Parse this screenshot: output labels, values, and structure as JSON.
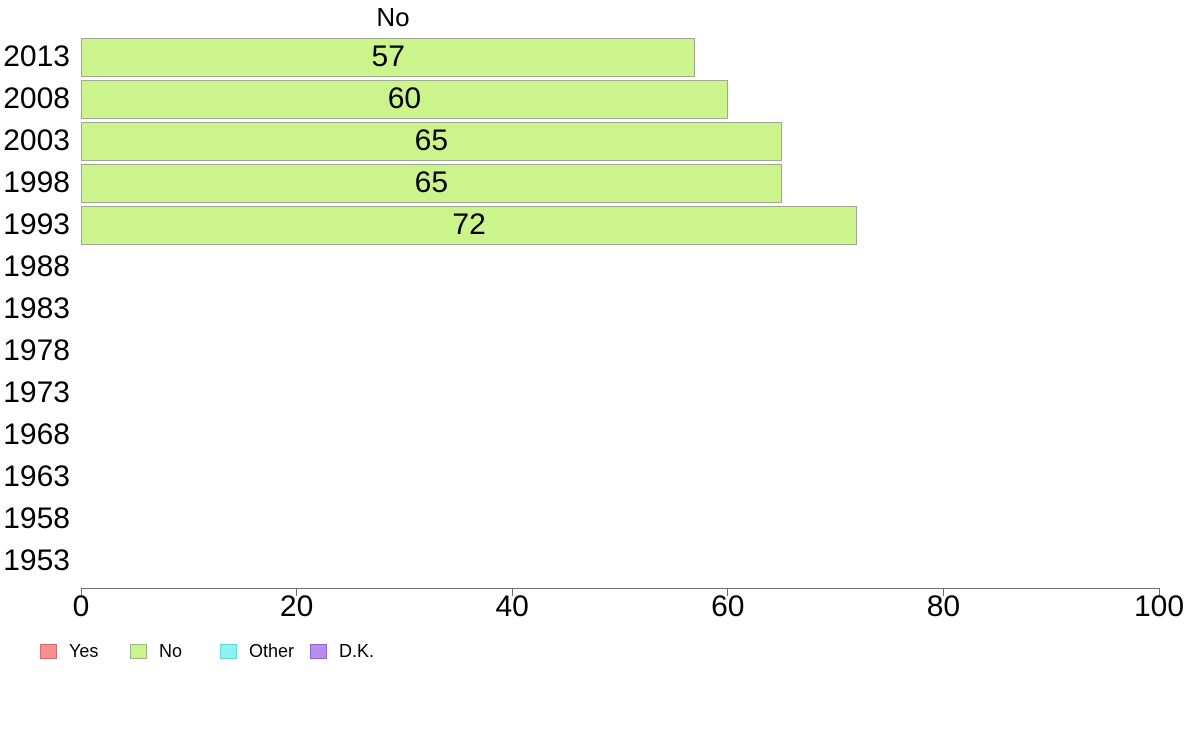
{
  "chart_data": {
    "type": "bar",
    "orientation": "horizontal",
    "title": "No",
    "categories": [
      "2013",
      "2008",
      "2003",
      "1998",
      "1993",
      "1988",
      "1983",
      "1978",
      "1973",
      "1968",
      "1963",
      "1958",
      "1953"
    ],
    "values": [
      57,
      60,
      65,
      65,
      72,
      null,
      null,
      null,
      null,
      null,
      null,
      null,
      null
    ],
    "value_labels_shown": true,
    "xlabel": "",
    "ylabel": "",
    "xlim": [
      0,
      100
    ],
    "x_ticks": [
      0,
      20,
      40,
      60,
      80,
      100
    ],
    "grid": false,
    "bar_fill": "#cbf48d",
    "bar_border": "#9fa792",
    "axis_color": "#6f6f6f",
    "text_color": "#000000",
    "legend_position": "bottom-left",
    "legend": [
      {
        "label": "Yes",
        "fill": "#f68f8f",
        "border": "#dd6a6a"
      },
      {
        "label": "No",
        "fill": "#cbf48d",
        "border": "#9db483"
      },
      {
        "label": "Other",
        "fill": "#8df2f2",
        "border": "#62d8d8"
      },
      {
        "label": "D.K.",
        "fill": "#b78df2",
        "border": "#9263d8"
      }
    ]
  }
}
